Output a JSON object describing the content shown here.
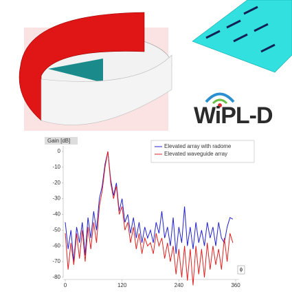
{
  "logo": "WiPL-D",
  "chart_data": {
    "type": "line",
    "ylabel": "Gain [dB]",
    "xlabel": "ϕ",
    "x": [
      0,
      6,
      12,
      18,
      24,
      30,
      36,
      42,
      48,
      54,
      60,
      66,
      72,
      78,
      84,
      90,
      96,
      102,
      108,
      114,
      120,
      126,
      132,
      138,
      144,
      150,
      156,
      162,
      168,
      174,
      180,
      186,
      192,
      198,
      204,
      210,
      216,
      222,
      228,
      234,
      240,
      246,
      252,
      258,
      264,
      270,
      276,
      282,
      288,
      294,
      300,
      306,
      312,
      318,
      324,
      330,
      336,
      342,
      348,
      354
    ],
    "series": [
      {
        "name": "Elevated array with radome",
        "color": "#2020d0",
        "values": [
          -45,
          -62,
          -50,
          -70,
          -48,
          -58,
          -45,
          -66,
          -42,
          -55,
          -38,
          -50,
          -30,
          -22,
          -8,
          0,
          -18,
          -28,
          -20,
          -38,
          -30,
          -45,
          -40,
          -52,
          -42,
          -55,
          -45,
          -58,
          -48,
          -55,
          -50,
          -58,
          -45,
          -52,
          -38,
          -55,
          -48,
          -60,
          -42,
          -65,
          -48,
          -58,
          -35,
          -60,
          -48,
          -62,
          -45,
          -58,
          -50,
          -60,
          -45,
          -55,
          -48,
          -60,
          -45,
          -55,
          -58,
          -48,
          -42,
          -43
        ]
      },
      {
        "name": "Elevated waveguide array",
        "color": "#e02020",
        "values": [
          -52,
          -75,
          -58,
          -72,
          -52,
          -68,
          -50,
          -70,
          -48,
          -62,
          -45,
          -58,
          -35,
          -25,
          -10,
          0,
          -20,
          -30,
          -22,
          -40,
          -35,
          -50,
          -45,
          -58,
          -48,
          -62,
          -52,
          -65,
          -55,
          -60,
          -58,
          -65,
          -52,
          -60,
          -55,
          -68,
          -58,
          -70,
          -60,
          -78,
          -62,
          -80,
          -60,
          -82,
          -62,
          -85,
          -60,
          -78,
          -62,
          -80,
          -58,
          -75,
          -60,
          -72,
          -62,
          -75,
          -55,
          -70,
          -52,
          -58
        ]
      }
    ],
    "xlim": [
      0,
      360
    ],
    "xticks": [
      0,
      120,
      240,
      360
    ],
    "ylim": [
      -80,
      0
    ],
    "yticks": [
      0,
      -10,
      -20,
      -30,
      -40,
      -50,
      -60,
      -70,
      -80
    ]
  }
}
